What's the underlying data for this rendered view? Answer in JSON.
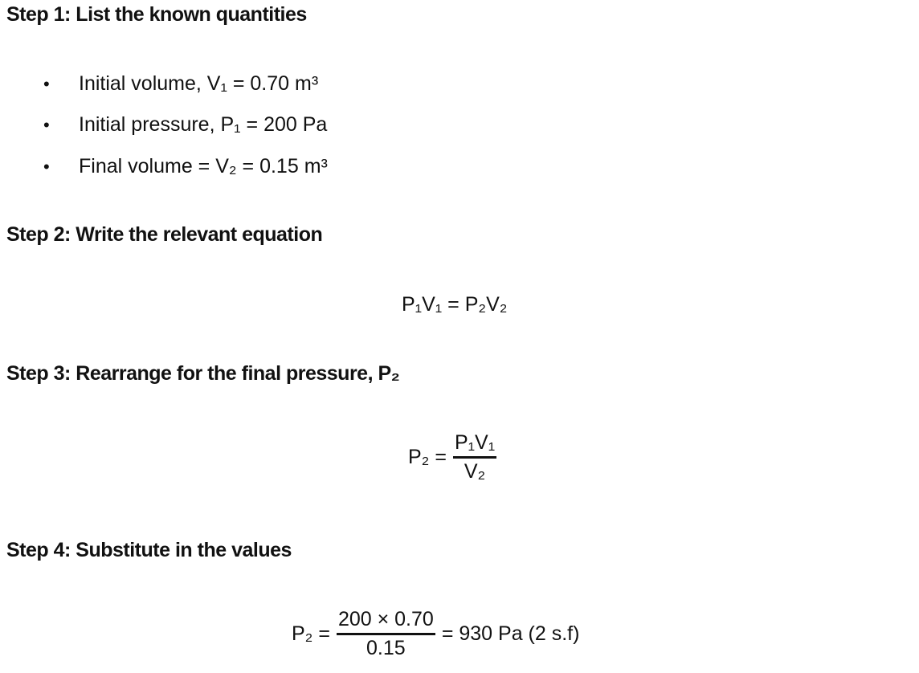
{
  "steps": [
    {
      "heading": "Step 1: List the known quantities"
    },
    {
      "heading": "Step 2: Write the relevant equation"
    },
    {
      "heading": "Step 3: Rearrange for the final pressure, P₂"
    },
    {
      "heading": "Step 4: Substitute in the values"
    }
  ],
  "known_quantities": [
    "Initial volume, V₁ = 0.70 m³",
    "Initial pressure, P₁ = 200 Pa",
    "Final volume = V₂ = 0.15 m³"
  ],
  "bullet": "•",
  "equation": "P₁V₁ = P₂V₂",
  "rearranged": {
    "lhs": "P₂ =",
    "numerator": "P₁V₁",
    "denominator": "V₂"
  },
  "substituted": {
    "lhs": "P₂ =",
    "numerator": "200 × 0.70",
    "denominator": "0.15",
    "result": "= 930 Pa (2 s.f)"
  }
}
